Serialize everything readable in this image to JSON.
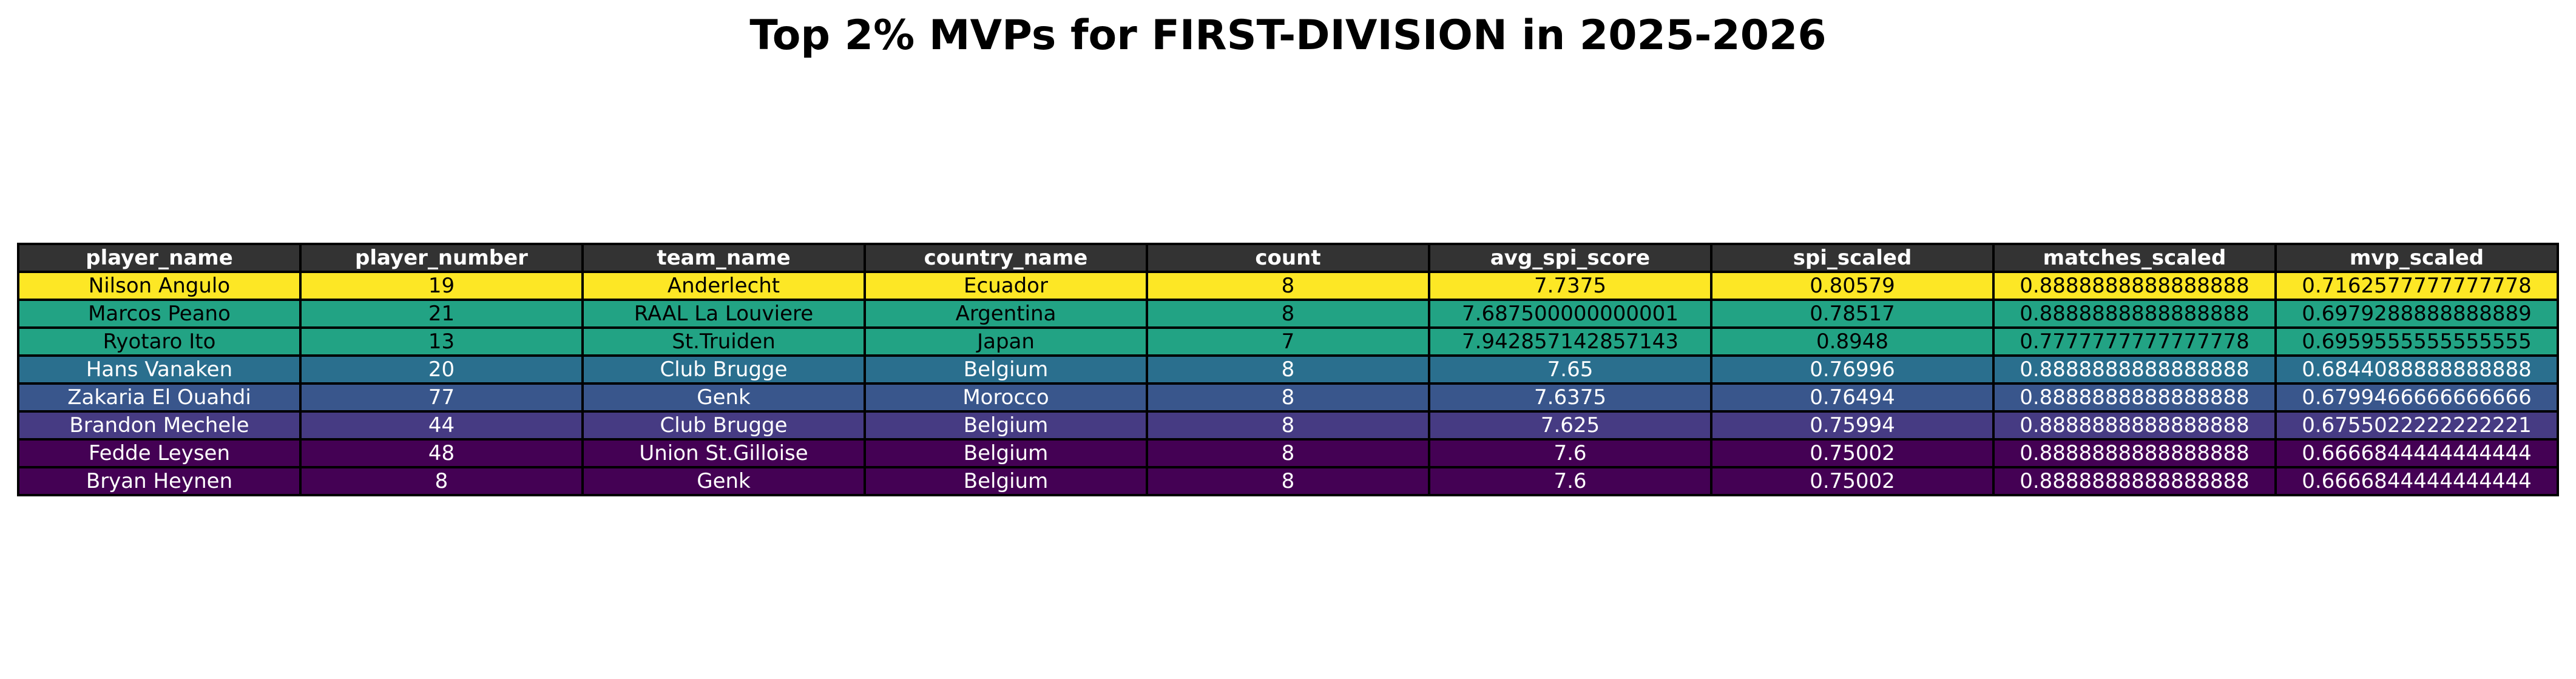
{
  "chart_data": {
    "type": "table",
    "title": "Top 2% MVPs for FIRST-DIVISION in 2025-2026",
    "header_color": "#333333",
    "columns": [
      "player_name",
      "player_number",
      "team_name",
      "country_name",
      "count",
      "avg_spi_score",
      "spi_scaled",
      "matches_scaled",
      "mvp_scaled"
    ],
    "rows": [
      {
        "cells": [
          "Nilson Angulo",
          "19",
          "Anderlecht",
          "Ecuador",
          "8",
          "7.7375",
          "0.80579",
          "0.8888888888888888",
          "0.7162577777777778"
        ],
        "bg": "#fde725",
        "fg": "#000000"
      },
      {
        "cells": [
          "Marcos Peano",
          "21",
          "RAAL La Louviere",
          "Argentina",
          "8",
          "7.687500000000001",
          "0.78517",
          "0.8888888888888888",
          "0.6979288888888889"
        ],
        "bg": "#22a384",
        "fg": "#000000"
      },
      {
        "cells": [
          "Ryotaro Ito",
          "13",
          "St.Truiden",
          "Japan",
          "7",
          "7.942857142857143",
          "0.8948",
          "0.7777777777777778",
          "0.6959555555555555"
        ],
        "bg": "#22a384",
        "fg": "#000000"
      },
      {
        "cells": [
          "Hans Vanaken",
          "20",
          "Club Brugge",
          "Belgium",
          "8",
          "7.65",
          "0.76996",
          "0.8888888888888888",
          "0.6844088888888888"
        ],
        "bg": "#2a6f8e",
        "fg": "#ffffff"
      },
      {
        "cells": [
          "Zakaria El Ouahdi",
          "77",
          "Genk",
          "Morocco",
          "8",
          "7.6375",
          "0.76494",
          "0.8888888888888888",
          "0.6799466666666666"
        ],
        "bg": "#39568c",
        "fg": "#ffffff"
      },
      {
        "cells": [
          "Brandon Mechele",
          "44",
          "Club Brugge",
          "Belgium",
          "8",
          "7.625",
          "0.75994",
          "0.8888888888888888",
          "0.6755022222222221"
        ],
        "bg": "#463b83",
        "fg": "#ffffff"
      },
      {
        "cells": [
          "Fedde Leysen",
          "48",
          "Union St.Gilloise",
          "Belgium",
          "8",
          "7.6",
          "0.75002",
          "0.8888888888888888",
          "0.6666844444444444"
        ],
        "bg": "#440154",
        "fg": "#ffffff"
      },
      {
        "cells": [
          "Bryan Heynen",
          "8",
          "Genk",
          "Belgium",
          "8",
          "7.6",
          "0.75002",
          "0.8888888888888888",
          "0.6666844444444444"
        ],
        "bg": "#440154",
        "fg": "#ffffff"
      }
    ]
  }
}
